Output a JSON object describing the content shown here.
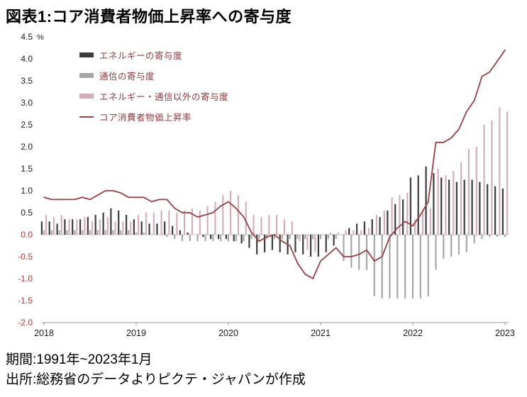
{
  "title": "図表1:コア消費者物価上昇率への寄与度",
  "footer": {
    "period": "期間:1991年~2023年1月",
    "source": "出所:総務省のデータよりピクテ・ジャパンが作成"
  },
  "colors": {
    "positive_tick_text": "#1a1a1a",
    "negative_tick_text": "#a33b3b",
    "axis_line": "#9a9a9a",
    "zero_line": "#bdbdbd",
    "legend_text": "#8f3a3e"
  },
  "chart_data": {
    "type": "bar",
    "title": "図表1:コア消費者物価上昇率への寄与度",
    "unit": "%",
    "ylabel": "%",
    "ylim": [
      -2.0,
      4.5
    ],
    "yticks": [
      4.5,
      4.0,
      3.5,
      3.0,
      2.5,
      2.0,
      1.5,
      1.0,
      0.5,
      0.0,
      -0.5,
      -1.0,
      -1.5,
      -2.0
    ],
    "grid": false,
    "legend_position": "top-left",
    "x_tick_labels": [
      "2018",
      "2019",
      "2020",
      "2021",
      "2022",
      "2023"
    ],
    "x_tick_month_index": [
      0,
      12,
      24,
      36,
      48,
      60
    ],
    "x_months": [
      "2018-01",
      "2018-02",
      "2018-03",
      "2018-04",
      "2018-05",
      "2018-06",
      "2018-07",
      "2018-08",
      "2018-09",
      "2018-10",
      "2018-11",
      "2018-12",
      "2019-01",
      "2019-02",
      "2019-03",
      "2019-04",
      "2019-05",
      "2019-06",
      "2019-07",
      "2019-08",
      "2019-09",
      "2019-10",
      "2019-11",
      "2019-12",
      "2020-01",
      "2020-02",
      "2020-03",
      "2020-04",
      "2020-05",
      "2020-06",
      "2020-07",
      "2020-08",
      "2020-09",
      "2020-10",
      "2020-11",
      "2020-12",
      "2021-01",
      "2021-02",
      "2021-03",
      "2021-04",
      "2021-05",
      "2021-06",
      "2021-07",
      "2021-08",
      "2021-09",
      "2021-10",
      "2021-11",
      "2021-12",
      "2022-01",
      "2022-02",
      "2022-03",
      "2022-04",
      "2022-05",
      "2022-06",
      "2022-07",
      "2022-08",
      "2022-09",
      "2022-10",
      "2022-11",
      "2022-12",
      "2023-01"
    ],
    "series": [
      {
        "name": "エネルギーの寄与度",
        "type": "bar",
        "color": "#3d3d3d",
        "values": [
          0.3,
          0.3,
          0.25,
          0.35,
          0.35,
          0.35,
          0.4,
          0.45,
          0.5,
          0.6,
          0.55,
          0.45,
          0.35,
          0.3,
          0.25,
          0.25,
          0.3,
          0.2,
          0.1,
          0.05,
          0.0,
          -0.05,
          -0.1,
          -0.1,
          -0.1,
          -0.15,
          -0.2,
          -0.3,
          -0.45,
          -0.4,
          -0.35,
          -0.4,
          -0.45,
          -0.4,
          -0.45,
          -0.5,
          -0.5,
          -0.4,
          -0.25,
          0.0,
          0.15,
          0.25,
          0.3,
          0.35,
          0.4,
          0.55,
          0.7,
          0.8,
          1.3,
          1.35,
          1.55,
          1.4,
          1.3,
          1.25,
          1.2,
          1.25,
          1.25,
          1.2,
          1.15,
          1.1,
          1.05
        ]
      },
      {
        "name": "通信の寄与度",
        "type": "bar",
        "color": "#a6a6a6",
        "values": [
          0.1,
          0.1,
          0.1,
          0.1,
          0.1,
          0.1,
          0.1,
          0.1,
          0.1,
          0.1,
          0.1,
          0.1,
          0.05,
          0.05,
          0.0,
          0.0,
          -0.05,
          -0.1,
          -0.15,
          -0.15,
          -0.15,
          -0.15,
          -0.15,
          -0.15,
          -0.15,
          -0.15,
          -0.15,
          -0.1,
          -0.1,
          -0.1,
          -0.1,
          -0.1,
          -0.1,
          -0.1,
          -0.1,
          -0.1,
          -0.1,
          -0.1,
          -0.1,
          -0.6,
          -0.75,
          -0.8,
          -0.8,
          -1.4,
          -1.45,
          -1.45,
          -1.45,
          -1.45,
          -1.45,
          -1.45,
          -1.4,
          -0.8,
          -0.55,
          -0.5,
          -0.45,
          -0.4,
          -0.2,
          -0.1,
          -0.05,
          -0.05,
          -0.05
        ]
      },
      {
        "name": "エネルギー・通信以外の寄与度",
        "type": "bar",
        "color": "#d6aebb",
        "values": [
          0.45,
          0.4,
          0.45,
          0.35,
          0.35,
          0.4,
          0.3,
          0.35,
          0.4,
          0.3,
          0.3,
          0.3,
          0.45,
          0.5,
          0.5,
          0.55,
          0.55,
          0.5,
          0.55,
          0.6,
          0.55,
          0.65,
          0.75,
          0.9,
          1.0,
          0.9,
          0.75,
          0.45,
          0.4,
          0.45,
          0.45,
          0.35,
          0.3,
          -0.15,
          -0.35,
          -0.4,
          0.0,
          0.05,
          0.05,
          0.1,
          0.1,
          0.1,
          0.15,
          0.45,
          0.55,
          0.85,
          0.9,
          0.95,
          0.35,
          0.55,
          0.6,
          1.5,
          1.35,
          1.45,
          1.65,
          1.95,
          2.0,
          2.5,
          2.6,
          2.9,
          2.8
        ]
      },
      {
        "name": "コア消費者物価上昇率",
        "type": "line",
        "color": "#9b3e44",
        "values": [
          0.85,
          0.8,
          0.8,
          0.8,
          0.8,
          0.85,
          0.8,
          0.9,
          1.0,
          1.0,
          0.95,
          0.85,
          0.85,
          0.85,
          0.75,
          0.8,
          0.8,
          0.6,
          0.5,
          0.5,
          0.4,
          0.45,
          0.5,
          0.65,
          0.75,
          0.6,
          0.4,
          0.05,
          -0.15,
          -0.05,
          0.0,
          -0.15,
          -0.25,
          -0.65,
          -0.9,
          -1.0,
          -0.6,
          -0.45,
          -0.3,
          -0.5,
          -0.5,
          -0.45,
          -0.35,
          -0.6,
          -0.5,
          -0.05,
          0.15,
          0.3,
          0.2,
          0.45,
          0.75,
          2.1,
          2.1,
          2.2,
          2.4,
          2.8,
          3.05,
          3.6,
          3.7,
          3.95,
          4.2
        ]
      }
    ]
  }
}
